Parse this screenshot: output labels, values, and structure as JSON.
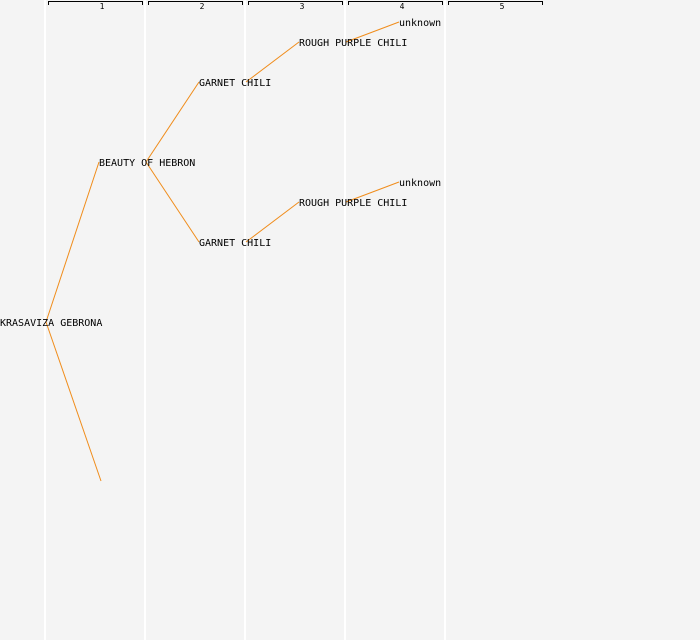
{
  "generations": [
    "1",
    "2",
    "3",
    "4",
    "5"
  ],
  "nodes": {
    "root": "KRASAVIZA GEBRONA",
    "g1_parent": "BEAUTY OF HEBRON",
    "g2_upper": "GARNET CHILI",
    "g2_lower": "GARNET CHILI",
    "g3_upper": "ROUGH PURPLE CHILI",
    "g3_lower": "ROUGH PURPLE CHILI",
    "g4_upper": "unknown",
    "g4_lower": "unknown"
  }
}
